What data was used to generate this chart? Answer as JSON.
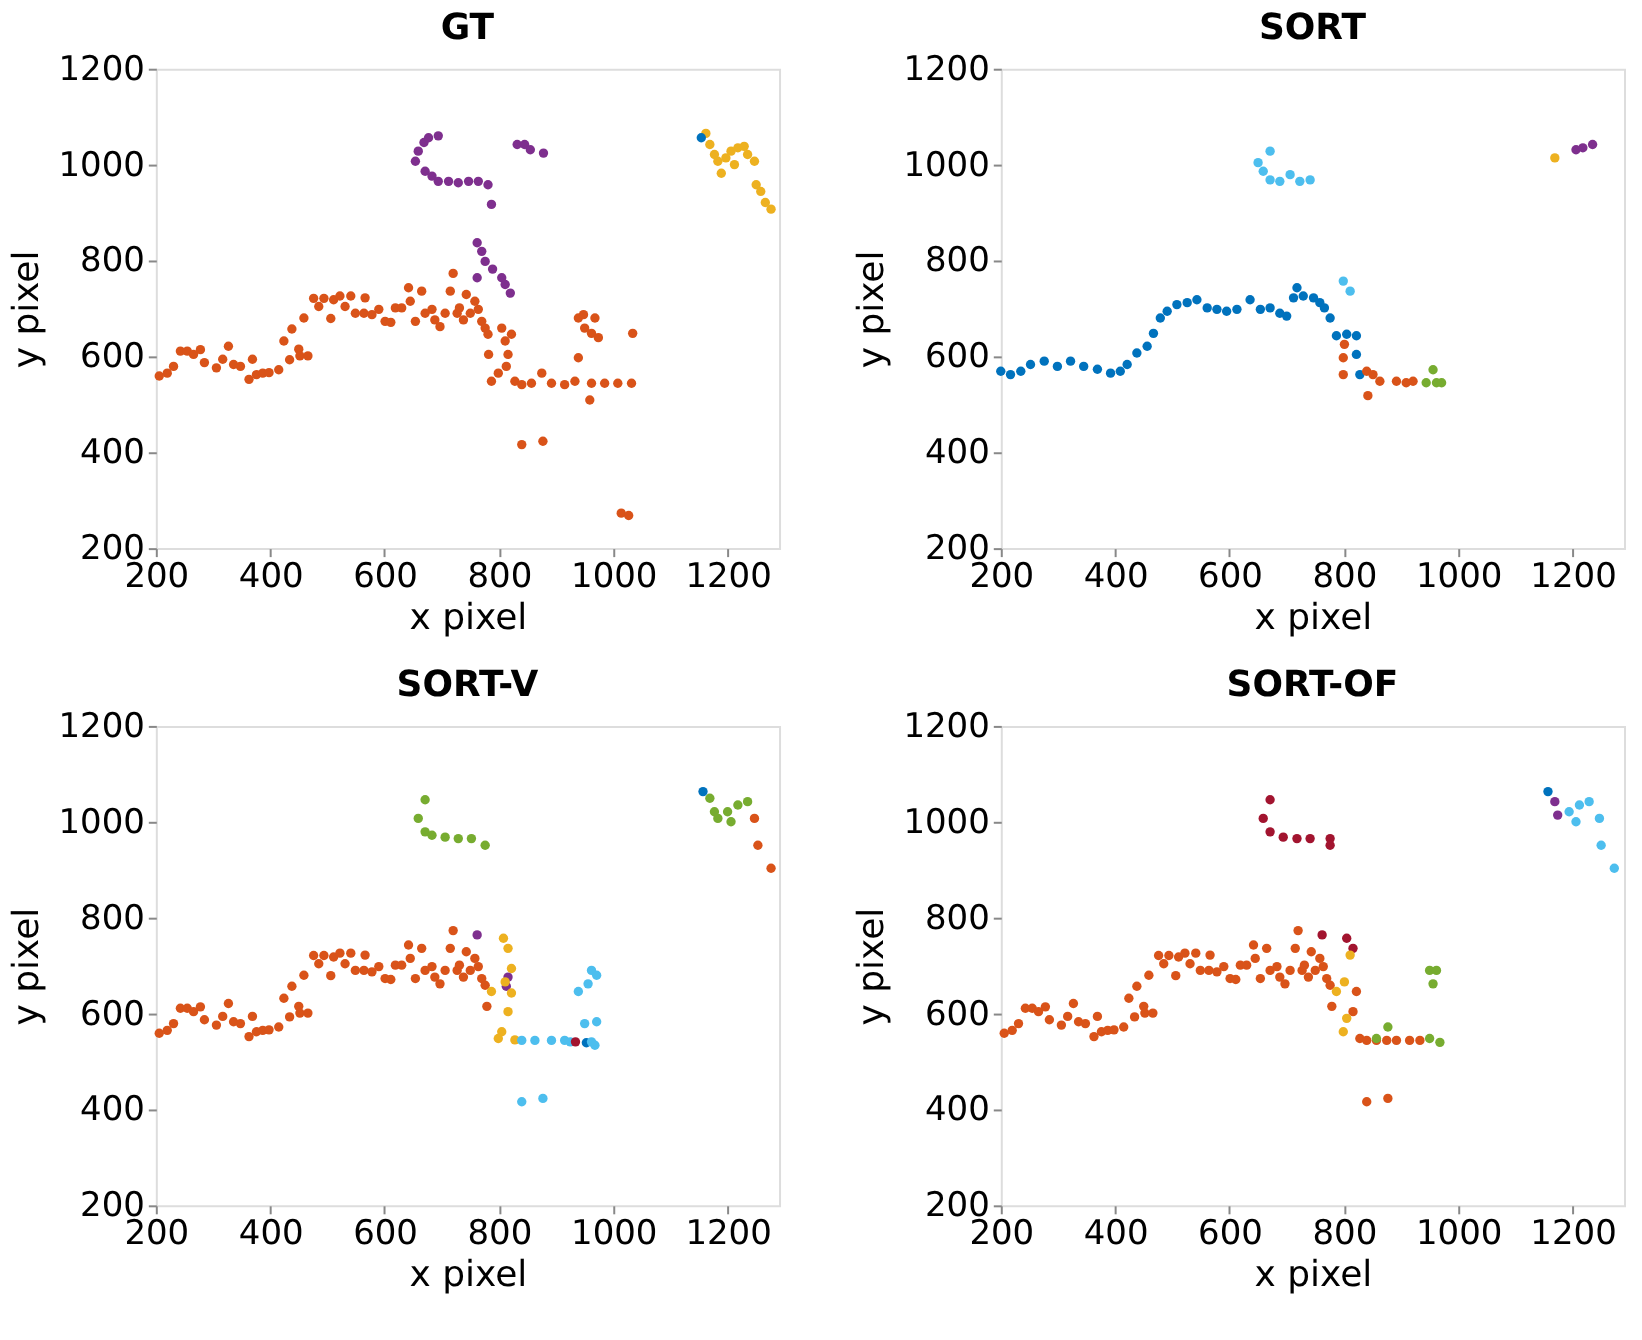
{
  "chart_data": [
    {
      "type": "scatter",
      "title": "GT",
      "xlabel": "x pixel",
      "ylabel": "y pixel",
      "xlim": [
        200,
        1290
      ],
      "ylim": [
        200,
        1200
      ],
      "xticks": [
        200,
        400,
        600,
        800,
        1000,
        1200
      ],
      "yticks": [
        200,
        400,
        600,
        800,
        1000,
        1200
      ],
      "marker": "circle",
      "grid": false,
      "series": [
        {
          "color": "#d95319",
          "x": [
            206,
            220,
            231,
            243,
            255,
            266,
            278,
            285,
            306,
            317,
            327,
            336,
            348,
            363,
            369,
            376,
            387,
            398,
            415,
            424,
            434,
            438,
            450,
            452,
            466,
            459,
            476,
            485,
            494,
            506,
            511,
            522,
            531,
            541,
            549,
            566,
            564,
            578,
            590,
            601,
            611,
            619,
            630,
            642,
            645,
            654,
            665,
            671,
            683,
            688,
            697,
            706,
            715,
            720,
            727,
            731,
            738,
            743,
            750,
            758,
            764,
            770,
            776,
            781,
            782,
            787,
            799,
            805,
            811,
            813,
            816,
            822,
            828,
            840,
            857,
            875,
            892,
            915,
            933,
            939,
            939,
            948,
            950,
            962,
            962,
            959,
            968,
            974,
            985,
            1008,
            1032,
            1034,
            840,
            877,
            1014,
            1027
          ],
          "values": [
            559,
            565,
            579,
            611,
            611,
            604,
            614,
            587,
            576,
            594,
            621,
            583,
            579,
            552,
            594,
            562,
            565,
            566,
            572,
            632,
            593,
            657,
            615,
            601,
            601,
            680,
            721,
            704,
            721,
            679,
            718,
            726,
            704,
            726,
            690,
            722,
            690,
            687,
            698,
            673,
            671,
            701,
            701,
            743,
            715,
            673,
            736,
            690,
            698,
            676,
            662,
            690,
            736,
            773,
            690,
            701,
            676,
            729,
            690,
            715,
            698,
            673,
            659,
            646,
            604,
            548,
            565,
            659,
            632,
            579,
            604,
            646,
            548,
            541,
            544,
            565,
            544,
            541,
            548,
            680,
            597,
            687,
            659,
            648,
            544,
            509,
            680,
            639,
            544,
            544,
            544,
            648,
            416,
            423,
            273,
            268
          ]
        },
        {
          "color": "#7e2f8e",
          "x": [
            654,
            659,
            669,
            677,
            694,
            671,
            683,
            694,
            712,
            729,
            747,
            764,
            781,
            787,
            762,
            770,
            776,
            762,
            789,
            805,
            811,
            820,
            832,
            845,
            855,
            878
          ],
          "values": [
            1007,
            1028,
            1046,
            1056,
            1060,
            986,
            976,
            965,
            965,
            962,
            965,
            965,
            958,
            917,
            837,
            819,
            798,
            764,
            782,
            764,
            750,
            732,
            1042,
            1042,
            1031,
            1024
          ]
        },
        {
          "color": "#edb120",
          "x": [
            1162,
            1169,
            1177,
            1183,
            1189,
            1197,
            1206,
            1218,
            1229,
            1235,
            1247,
            1250,
            1258,
            1266,
            1276,
            1212
          ],
          "values": [
            1065,
            1042,
            1021,
            1007,
            982,
            1014,
            1028,
            1035,
            1038,
            1021,
            1007,
            958,
            944,
            921,
            907,
            1000
          ]
        },
        {
          "color": "#0072bd",
          "x": [
            1154
          ],
          "values": [
            1056
          ]
        }
      ]
    },
    {
      "type": "scatter",
      "title": "SORT",
      "xlabel": "x pixel",
      "ylabel": "y pixel",
      "xlim": [
        200,
        1290
      ],
      "ylim": [
        200,
        1200
      ],
      "xticks": [
        200,
        400,
        600,
        800,
        1000,
        1200
      ],
      "yticks": [
        200,
        400,
        600,
        800,
        1000,
        1200
      ],
      "marker": "circle",
      "grid": false,
      "series": [
        {
          "color": "#0072bd",
          "x": [
            200,
            217,
            235,
            252,
            276,
            299,
            322,
            345,
            369,
            392,
            409,
            421,
            438,
            456,
            467,
            479,
            491,
            508,
            526,
            543,
            561,
            578,
            595,
            613,
            636,
            654,
            671,
            688,
            700,
            712,
            718,
            729,
            747,
            758,
            766,
            776,
            787,
            805,
            822,
            822,
            828
          ],
          "values": [
            569,
            562,
            569,
            583,
            590,
            579,
            590,
            579,
            573,
            565,
            569,
            583,
            607,
            621,
            648,
            680,
            694,
            708,
            712,
            718,
            701,
            698,
            694,
            698,
            718,
            698,
            701,
            690,
            684,
            722,
            743,
            726,
            722,
            712,
            701,
            680,
            643,
            646,
            643,
            604,
            562
          ]
        },
        {
          "color": "#4dbeee",
          "x": [
            650,
            671,
            659,
            671,
            688,
            706,
            723,
            741,
            799,
            811
          ],
          "values": [
            1004,
            1028,
            986,
            968,
            965,
            979,
            965,
            968,
            757,
            736
          ]
        },
        {
          "color": "#d95319",
          "x": [
            801,
            799,
            799,
            840,
            851,
            863,
            842,
            892,
            909,
            921
          ],
          "values": [
            625,
            597,
            562,
            569,
            562,
            548,
            518,
            548,
            545,
            548
          ]
        },
        {
          "color": "#77ac30",
          "x": [
            944,
            956,
            962,
            971
          ],
          "values": [
            545,
            572,
            545,
            545
          ]
        },
        {
          "color": "#edb120",
          "x": [
            1169
          ],
          "values": [
            1014
          ]
        },
        {
          "color": "#7e2f8e",
          "x": [
            1206,
            1218,
            1235
          ],
          "values": [
            1031,
            1035,
            1042
          ]
        }
      ]
    },
    {
      "type": "scatter",
      "title": "SORT-V",
      "xlabel": "x pixel",
      "ylabel": "y pixel",
      "xlim": [
        200,
        1290
      ],
      "ylim": [
        200,
        1200
      ],
      "xticks": [
        200,
        400,
        600,
        800,
        1000,
        1200
      ],
      "yticks": [
        200,
        400,
        600,
        800,
        1000,
        1200
      ],
      "marker": "circle",
      "grid": false,
      "series": [
        {
          "color": "#d95319",
          "x": [
            206,
            220,
            231,
            243,
            255,
            266,
            278,
            285,
            306,
            317,
            327,
            336,
            348,
            363,
            369,
            376,
            387,
            398,
            415,
            424,
            434,
            438,
            450,
            452,
            466,
            459,
            476,
            485,
            494,
            506,
            511,
            522,
            531,
            541,
            549,
            566,
            564,
            578,
            590,
            601,
            611,
            619,
            630,
            642,
            645,
            654,
            665,
            671,
            683,
            688,
            697,
            706,
            715,
            720,
            727,
            731,
            738,
            743,
            750,
            758,
            764,
            770,
            776,
            779,
            1247,
            1253,
            1276
          ],
          "values": [
            559,
            565,
            579,
            611,
            611,
            604,
            614,
            587,
            576,
            594,
            621,
            583,
            579,
            552,
            594,
            562,
            565,
            566,
            572,
            632,
            593,
            657,
            615,
            601,
            601,
            680,
            721,
            704,
            721,
            679,
            718,
            726,
            704,
            726,
            690,
            722,
            690,
            687,
            698,
            673,
            671,
            701,
            701,
            743,
            715,
            673,
            736,
            690,
            698,
            676,
            662,
            690,
            736,
            773,
            690,
            701,
            676,
            729,
            690,
            715,
            698,
            673,
            659,
            615,
            1007,
            951,
            903
          ]
        },
        {
          "color": "#77ac30",
          "x": [
            671,
            659,
            671,
            683,
            706,
            729,
            752,
            776,
            1169,
            1177,
            1183,
            1200,
            1218,
            1235,
            1206
          ],
          "values": [
            1046,
            1007,
            979,
            972,
            968,
            965,
            965,
            951,
            1049,
            1021,
            1007,
            1021,
            1035,
            1042,
            1000
          ]
        },
        {
          "color": "#0072bd",
          "x": [
            1157,
            953
          ],
          "values": [
            1063,
            539
          ]
        },
        {
          "color": "#7e2f8e",
          "x": [
            762,
            816,
            813
          ],
          "values": [
            764,
            676,
            657
          ]
        },
        {
          "color": "#edb120",
          "x": [
            808,
            816,
            822,
            811,
            787,
            822,
            816,
            805,
            799,
            828
          ],
          "values": [
            757,
            736,
            694,
            666,
            646,
            643,
            604,
            562,
            548,
            545
          ]
        },
        {
          "color": "#4dbeee",
          "x": [
            840,
            863,
            892,
            915,
            925,
            962,
            950,
            971,
            939,
            956,
            962,
            971,
            840,
            877,
            968
          ],
          "values": [
            544,
            544,
            544,
            544,
            541,
            541,
            579,
            583,
            646,
            662,
            690,
            680,
            416,
            423,
            534
          ]
        },
        {
          "color": "#a2142f",
          "x": [
            934
          ],
          "values": [
            541
          ]
        }
      ]
    },
    {
      "type": "scatter",
      "title": "SORT-OF",
      "xlabel": "x pixel",
      "ylabel": "y pixel",
      "xlim": [
        200,
        1290
      ],
      "ylim": [
        200,
        1200
      ],
      "xticks": [
        200,
        400,
        600,
        800,
        1000,
        1200
      ],
      "yticks": [
        200,
        400,
        600,
        800,
        1000,
        1200
      ],
      "marker": "circle",
      "grid": false,
      "series": [
        {
          "color": "#d95319",
          "x": [
            206,
            220,
            231,
            243,
            255,
            266,
            278,
            285,
            306,
            317,
            327,
            336,
            348,
            363,
            369,
            376,
            387,
            398,
            415,
            424,
            434,
            438,
            450,
            452,
            466,
            459,
            476,
            485,
            494,
            506,
            511,
            522,
            531,
            541,
            549,
            566,
            564,
            578,
            590,
            601,
            611,
            619,
            630,
            642,
            645,
            654,
            665,
            671,
            683,
            688,
            697,
            706,
            715,
            720,
            727,
            731,
            738,
            743,
            750,
            758,
            764,
            770,
            776,
            779,
            816,
            822,
            828,
            840,
            857,
            875,
            892,
            915,
            933,
            840,
            877
          ],
          "values": [
            559,
            565,
            579,
            611,
            611,
            604,
            614,
            587,
            576,
            594,
            621,
            583,
            579,
            552,
            594,
            562,
            565,
            566,
            572,
            632,
            593,
            657,
            615,
            601,
            601,
            680,
            721,
            704,
            721,
            679,
            718,
            726,
            704,
            726,
            690,
            722,
            690,
            687,
            698,
            673,
            671,
            701,
            701,
            743,
            715,
            673,
            736,
            690,
            698,
            676,
            662,
            690,
            736,
            773,
            690,
            701,
            676,
            729,
            690,
            715,
            698,
            673,
            659,
            615,
            604,
            646,
            548,
            544,
            544,
            544,
            544,
            544,
            544,
            416,
            423
          ]
        },
        {
          "color": "#a2142f",
          "x": [
            671,
            659,
            671,
            694,
            718,
            741,
            776,
            776,
            762,
            805,
            816
          ],
          "values": [
            1046,
            1007,
            979,
            968,
            965,
            965,
            965,
            951,
            764,
            757,
            736
          ]
        },
        {
          "color": "#edb120",
          "x": [
            811,
            801,
            787,
            799,
            805
          ],
          "values": [
            722,
            666,
            646,
            562,
            590
          ]
        },
        {
          "color": "#77ac30",
          "x": [
            950,
            962,
            956,
            950,
            968,
            877,
            857
          ],
          "values": [
            690,
            690,
            662,
            548,
            540,
            572,
            548
          ]
        },
        {
          "color": "#0072bd",
          "x": [
            1157
          ],
          "values": [
            1063
          ]
        },
        {
          "color": "#7e2f8e",
          "x": [
            1169,
            1174
          ],
          "values": [
            1042,
            1014
          ]
        },
        {
          "color": "#4dbeee",
          "x": [
            1194,
            1212,
            1229,
            1206,
            1247,
            1250,
            1273
          ],
          "values": [
            1021,
            1035,
            1042,
            1000,
            1007,
            951,
            903
          ]
        }
      ]
    }
  ]
}
